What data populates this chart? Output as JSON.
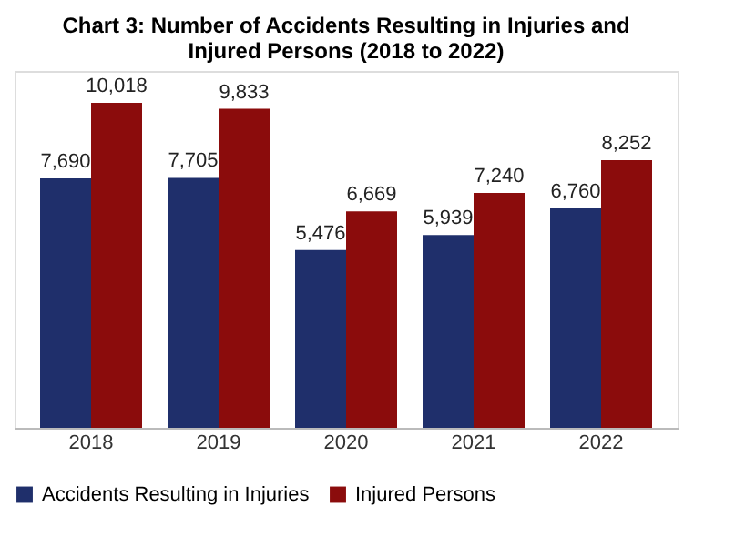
{
  "chart_data": {
    "type": "bar",
    "title": "Chart 3: Number of Accidents Resulting in Injuries and Injured Persons (2018 to 2022)",
    "categories": [
      "2018",
      "2019",
      "2020",
      "2021",
      "2022"
    ],
    "series": [
      {
        "name": "Accidents Resulting in Injuries",
        "color": "#1f2f6b",
        "values": [
          7690,
          7705,
          5476,
          5939,
          6760
        ],
        "value_labels": [
          "7,690",
          "7,705",
          "5,476",
          "5,939",
          "6,760"
        ]
      },
      {
        "name": "Injured Persons",
        "color": "#8b0c0c",
        "values": [
          10018,
          9833,
          6669,
          7240,
          8252
        ],
        "value_labels": [
          "10,018",
          "9,833",
          "6,669",
          "7,240",
          "8,252"
        ]
      }
    ],
    "legend": "bottom",
    "grid": false
  }
}
